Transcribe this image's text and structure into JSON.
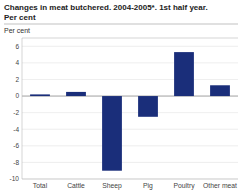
{
  "chart_data": {
    "type": "bar",
    "title": "Changes in meat butchered. 2004-2005*. 1st half year.",
    "subtitle": "Per cent",
    "ylabel": "Per cent",
    "categories": [
      "Total",
      "Cattle",
      "Sheep",
      "Pig",
      "Poultry",
      "Other meat"
    ],
    "values": [
      0.2,
      0.5,
      -9.0,
      -2.5,
      5.3,
      1.3
    ],
    "color": "#1a2e7a",
    "ylim": [
      -10,
      7
    ],
    "yticks": [
      -10,
      -8,
      -6,
      -4,
      -2,
      0,
      2,
      4,
      6
    ],
    "grid": true
  }
}
